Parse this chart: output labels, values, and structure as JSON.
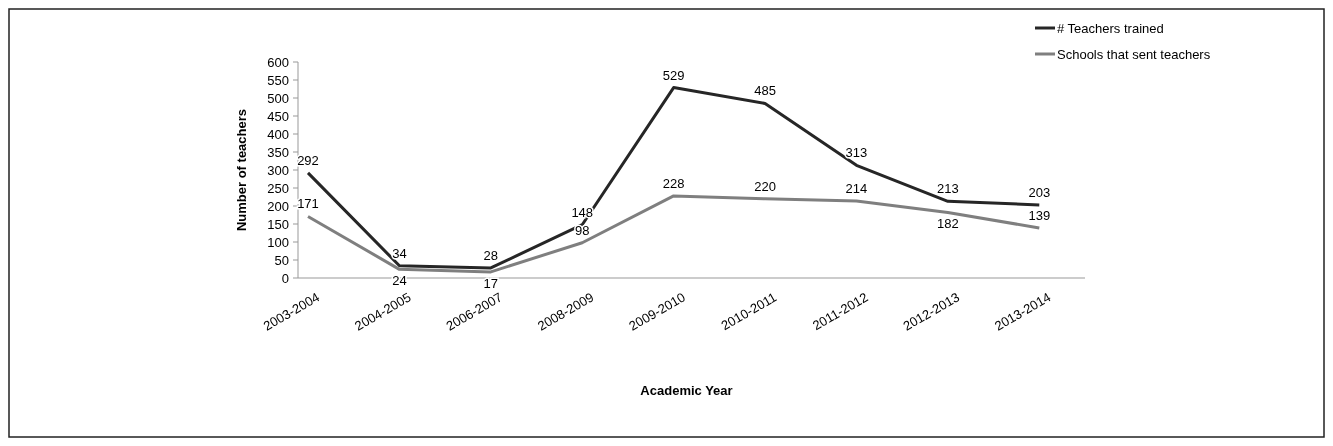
{
  "chart_data": {
    "type": "line",
    "xlabel": "Academic Year",
    "ylabel": "Number of teachers",
    "categories": [
      "2003-2004",
      "2004-2005",
      "2006-2007",
      "2008-2009",
      "2009-2010",
      "2010-2011",
      "2011-2012",
      "2012-2013",
      "2013-2014"
    ],
    "series": [
      {
        "name": "# Teachers trained",
        "color": "#262626",
        "values": [
          292,
          34,
          28,
          148,
          529,
          485,
          313,
          213,
          203
        ]
      },
      {
        "name": "Schools that sent teachers",
        "color": "#7f7f7f",
        "values": [
          171,
          24,
          17,
          98,
          228,
          220,
          214,
          182,
          139
        ]
      }
    ],
    "ylim": [
      0,
      600
    ],
    "yticks": [
      0,
      50,
      100,
      150,
      200,
      250,
      300,
      350,
      400,
      450,
      500,
      550,
      600
    ],
    "data_labels": true,
    "legend": "top right",
    "grid": false,
    "marker": "none",
    "line_style": "solid"
  }
}
